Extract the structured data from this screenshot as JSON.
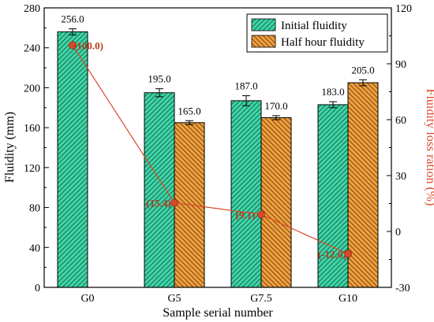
{
  "chart_data": {
    "type": "bar",
    "title": "",
    "xlabel": "Sample serial number",
    "ylabel": "Fluidity (mm)",
    "y2label": "Fluidity loss ration (%)",
    "categories": [
      "G0",
      "G5",
      "G7.5",
      "G10"
    ],
    "ylim": [
      0,
      280
    ],
    "yticks": [
      0,
      40,
      80,
      120,
      160,
      200,
      240,
      280
    ],
    "y2lim": [
      -30,
      120
    ],
    "y2ticks": [
      -30,
      0,
      30,
      60,
      90,
      120
    ],
    "grid": false,
    "legend_position": "top-right",
    "series": [
      {
        "name": "Initial fluidity",
        "type": "bar",
        "axis": "left",
        "color": "#3dd6a8",
        "values": [
          256.0,
          195.0,
          187.0,
          183.0
        ],
        "labels": [
          "256.0",
          "195.0",
          "187.0",
          "183.0"
        ],
        "errors": [
          3,
          4,
          5,
          3
        ]
      },
      {
        "name": "Half hour fluidity",
        "type": "bar",
        "axis": "left",
        "color": "#f0a03c",
        "values": [
          null,
          165.0,
          170.0,
          205.0
        ],
        "labels": [
          "",
          "165.0",
          "170.0",
          "205.0"
        ],
        "errors": [
          0,
          2,
          2,
          3
        ]
      },
      {
        "type": "line",
        "axis": "right",
        "color": "#d94a2b",
        "values": [
          100.0,
          15.4,
          9.1,
          -12.0
        ],
        "labels": [
          "(100.0)",
          "(15.4)",
          "(9.1)",
          "(-12.0)"
        ]
      }
    ]
  }
}
